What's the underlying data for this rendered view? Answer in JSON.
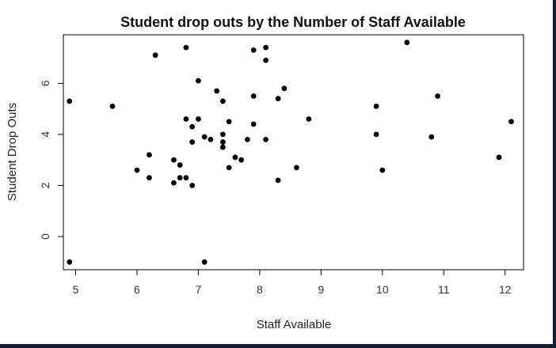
{
  "chart_data": {
    "type": "scatter",
    "title": "Student drop outs by the Number of Staff Available",
    "xlabel": "Staff Available",
    "ylabel": "Student Drop Outs",
    "xlim": [
      4.8,
      12.3
    ],
    "ylim": [
      -1.3,
      7.9
    ],
    "xticks": [
      5,
      6,
      7,
      8,
      9,
      10,
      11,
      12
    ],
    "yticks": [
      0,
      2,
      4,
      6
    ],
    "grid": false,
    "marker_color": "#000000",
    "points": [
      {
        "x": 4.9,
        "y": 5.3
      },
      {
        "x": 4.9,
        "y": -1.0
      },
      {
        "x": 5.6,
        "y": 5.1
      },
      {
        "x": 6.0,
        "y": 2.6
      },
      {
        "x": 6.2,
        "y": 3.2
      },
      {
        "x": 6.2,
        "y": 2.3
      },
      {
        "x": 6.3,
        "y": 7.1
      },
      {
        "x": 6.6,
        "y": 3.0
      },
      {
        "x": 6.6,
        "y": 2.1
      },
      {
        "x": 6.7,
        "y": 2.8
      },
      {
        "x": 6.7,
        "y": 2.3
      },
      {
        "x": 6.8,
        "y": 7.4
      },
      {
        "x": 6.8,
        "y": 4.6
      },
      {
        "x": 6.8,
        "y": 2.3
      },
      {
        "x": 6.9,
        "y": 4.3
      },
      {
        "x": 6.9,
        "y": 3.7
      },
      {
        "x": 6.9,
        "y": 2.0
      },
      {
        "x": 7.0,
        "y": 6.1
      },
      {
        "x": 7.0,
        "y": 4.6
      },
      {
        "x": 7.1,
        "y": 3.9
      },
      {
        "x": 7.1,
        "y": -1.0
      },
      {
        "x": 7.2,
        "y": 3.8
      },
      {
        "x": 7.3,
        "y": 5.7
      },
      {
        "x": 7.4,
        "y": 5.3
      },
      {
        "x": 7.4,
        "y": 4.0
      },
      {
        "x": 7.4,
        "y": 3.7
      },
      {
        "x": 7.4,
        "y": 3.5
      },
      {
        "x": 7.5,
        "y": 4.5
      },
      {
        "x": 7.5,
        "y": 2.7
      },
      {
        "x": 7.6,
        "y": 3.1
      },
      {
        "x": 7.7,
        "y": 3.0
      },
      {
        "x": 7.8,
        "y": 3.8
      },
      {
        "x": 7.9,
        "y": 7.3
      },
      {
        "x": 7.9,
        "y": 5.5
      },
      {
        "x": 7.9,
        "y": 4.4
      },
      {
        "x": 8.1,
        "y": 7.4
      },
      {
        "x": 8.1,
        "y": 6.9
      },
      {
        "x": 8.1,
        "y": 3.8
      },
      {
        "x": 8.3,
        "y": 5.4
      },
      {
        "x": 8.3,
        "y": 2.2
      },
      {
        "x": 8.4,
        "y": 5.8
      },
      {
        "x": 8.6,
        "y": 2.7
      },
      {
        "x": 8.8,
        "y": 4.6
      },
      {
        "x": 9.9,
        "y": 5.1
      },
      {
        "x": 9.9,
        "y": 4.0
      },
      {
        "x": 10.0,
        "y": 2.6
      },
      {
        "x": 10.4,
        "y": 7.6
      },
      {
        "x": 10.8,
        "y": 3.9
      },
      {
        "x": 10.9,
        "y": 5.5
      },
      {
        "x": 11.9,
        "y": 3.1
      },
      {
        "x": 12.1,
        "y": 4.5
      }
    ]
  }
}
